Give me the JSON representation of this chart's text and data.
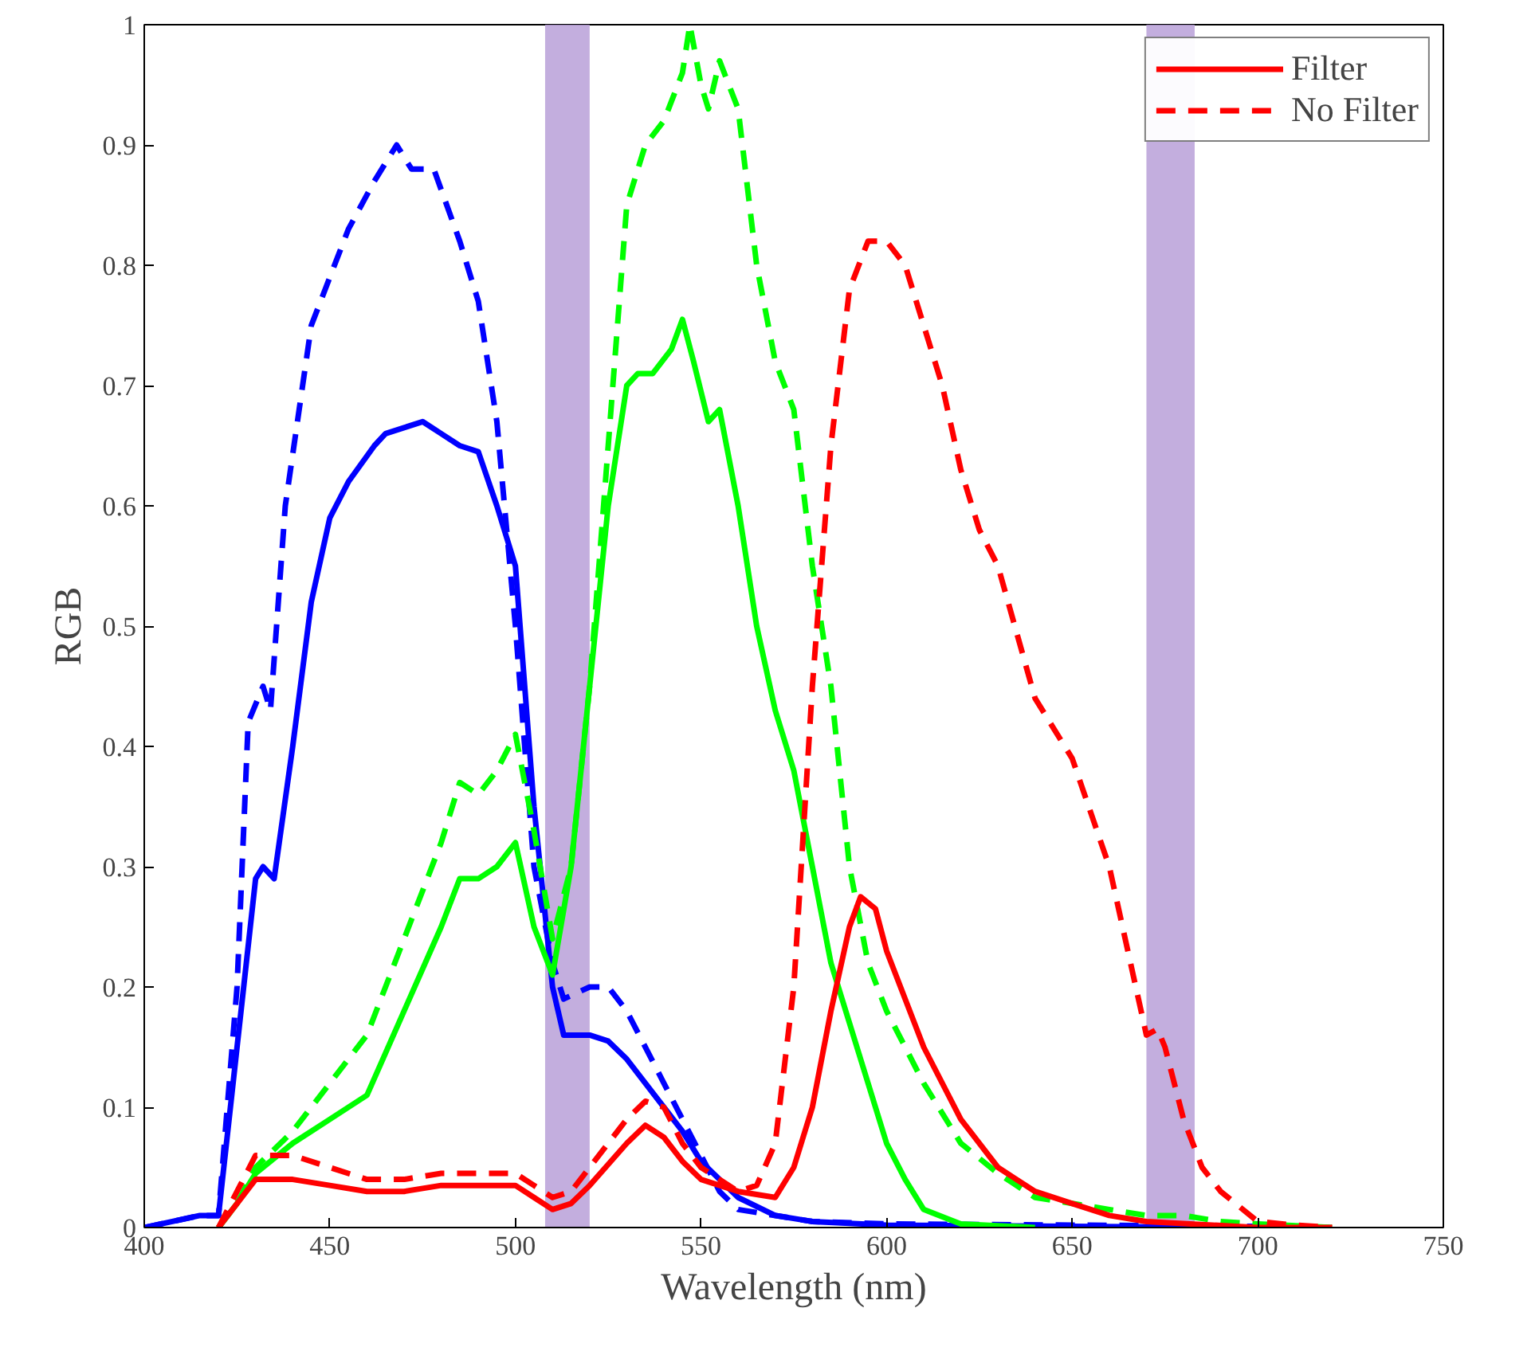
{
  "chart_data": {
    "type": "line",
    "xlabel": "Wavelength (nm)",
    "ylabel": "RGB",
    "xlim": [
      400,
      750
    ],
    "xticks": [
      400,
      450,
      500,
      550,
      600,
      650,
      700,
      750
    ],
    "ylim": [
      0,
      1
    ],
    "yticks": [
      0,
      0.1,
      0.2,
      0.3,
      0.4,
      0.5,
      0.6,
      0.7,
      0.8,
      0.9,
      1
    ],
    "grid": false,
    "legend": "top right",
    "marker": "none",
    "bands": [
      {
        "axis": "x",
        "from": 508,
        "to": 520,
        "color": "#b9a0d8"
      },
      {
        "axis": "x",
        "from": 670,
        "to": 683,
        "color": "#b9a0d8"
      }
    ],
    "series": [
      {
        "color": "#0000ff",
        "line_style": "dashed",
        "x": [
          400,
          415,
          420,
          425,
          428,
          432,
          434,
          438,
          445,
          455,
          462,
          468,
          472,
          478,
          485,
          490,
          495,
          500,
          505,
          510,
          513,
          520,
          525,
          530,
          540,
          550,
          555,
          560,
          580,
          600,
          650,
          700,
          720
        ],
        "values": [
          0,
          0.01,
          0.01,
          0.2,
          0.42,
          0.45,
          0.43,
          0.6,
          0.75,
          0.83,
          0.87,
          0.9,
          0.88,
          0.88,
          0.82,
          0.77,
          0.67,
          0.5,
          0.3,
          0.22,
          0.19,
          0.2,
          0.2,
          0.18,
          0.12,
          0.06,
          0.03,
          0.015,
          0.005,
          0.003,
          0.002,
          0.001,
          0
        ]
      },
      {
        "color": "#0000ff",
        "line_style": "solid",
        "x": [
          400,
          415,
          420,
          425,
          430,
          432,
          435,
          440,
          445,
          450,
          455,
          462,
          465,
          470,
          475,
          480,
          485,
          490,
          495,
          500,
          505,
          510,
          513,
          520,
          525,
          530,
          540,
          545,
          550,
          560,
          570,
          580,
          600,
          700
        ],
        "values": [
          0,
          0.01,
          0.01,
          0.15,
          0.29,
          0.3,
          0.29,
          0.4,
          0.52,
          0.59,
          0.62,
          0.65,
          0.66,
          0.665,
          0.67,
          0.66,
          0.65,
          0.645,
          0.6,
          0.55,
          0.35,
          0.2,
          0.16,
          0.16,
          0.155,
          0.14,
          0.1,
          0.08,
          0.055,
          0.025,
          0.01,
          0.005,
          0.002,
          0
        ]
      },
      {
        "color": "#00ff00",
        "line_style": "dashed",
        "x": [
          420,
          425,
          430,
          440,
          450,
          460,
          470,
          480,
          485,
          490,
          495,
          500,
          505,
          510,
          515,
          520,
          525,
          530,
          535,
          540,
          545,
          547,
          550,
          552,
          555,
          560,
          565,
          570,
          575,
          580,
          585,
          590,
          595,
          600,
          610,
          620,
          630,
          640,
          650,
          660,
          670,
          680,
          690,
          700,
          720
        ],
        "values": [
          0,
          0.02,
          0.05,
          0.08,
          0.12,
          0.16,
          0.24,
          0.32,
          0.37,
          0.36,
          0.38,
          0.41,
          0.33,
          0.24,
          0.3,
          0.45,
          0.65,
          0.85,
          0.9,
          0.92,
          0.96,
          1.0,
          0.95,
          0.93,
          0.97,
          0.93,
          0.8,
          0.72,
          0.68,
          0.55,
          0.45,
          0.3,
          0.22,
          0.18,
          0.12,
          0.07,
          0.045,
          0.025,
          0.02,
          0.015,
          0.01,
          0.01,
          0.005,
          0.003,
          0
        ]
      },
      {
        "color": "#00ff00",
        "line_style": "solid",
        "x": [
          420,
          425,
          430,
          440,
          450,
          460,
          470,
          480,
          485,
          490,
          495,
          500,
          505,
          510,
          515,
          520,
          525,
          530,
          533,
          537,
          542,
          545,
          548,
          552,
          555,
          560,
          565,
          570,
          575,
          580,
          585,
          590,
          595,
          600,
          605,
          610,
          620,
          640
        ],
        "values": [
          0,
          0.02,
          0.045,
          0.07,
          0.09,
          0.11,
          0.18,
          0.25,
          0.29,
          0.29,
          0.3,
          0.32,
          0.25,
          0.21,
          0.3,
          0.45,
          0.6,
          0.7,
          0.71,
          0.71,
          0.73,
          0.755,
          0.72,
          0.67,
          0.68,
          0.6,
          0.5,
          0.43,
          0.38,
          0.3,
          0.22,
          0.17,
          0.12,
          0.07,
          0.04,
          0.015,
          0.003,
          0
        ]
      },
      {
        "name": "Filter",
        "color": "#ff0000",
        "line_style": "solid",
        "x": [
          420,
          425,
          430,
          440,
          450,
          460,
          470,
          480,
          490,
          500,
          505,
          510,
          515,
          520,
          530,
          535,
          540,
          545,
          550,
          560,
          570,
          575,
          580,
          585,
          590,
          593,
          597,
          600,
          610,
          620,
          630,
          640,
          650,
          660,
          670,
          700,
          720
        ],
        "values": [
          0,
          0.02,
          0.04,
          0.04,
          0.035,
          0.03,
          0.03,
          0.035,
          0.035,
          0.035,
          0.025,
          0.015,
          0.02,
          0.035,
          0.07,
          0.085,
          0.075,
          0.055,
          0.04,
          0.03,
          0.025,
          0.05,
          0.1,
          0.18,
          0.25,
          0.275,
          0.265,
          0.23,
          0.15,
          0.09,
          0.05,
          0.03,
          0.02,
          0.01,
          0.005,
          0,
          0
        ]
      },
      {
        "name": "No Filter",
        "color": "#ff0000",
        "line_style": "dashed",
        "x": [
          420,
          425,
          430,
          440,
          450,
          460,
          470,
          480,
          490,
          500,
          505,
          510,
          515,
          520,
          530,
          535,
          540,
          545,
          550,
          560,
          565,
          570,
          575,
          580,
          585,
          590,
          595,
          600,
          605,
          610,
          615,
          620,
          625,
          630,
          640,
          650,
          660,
          665,
          670,
          673,
          675,
          680,
          685,
          690,
          700,
          710,
          720
        ],
        "values": [
          0,
          0.03,
          0.06,
          0.06,
          0.05,
          0.04,
          0.04,
          0.045,
          0.045,
          0.045,
          0.035,
          0.025,
          0.03,
          0.05,
          0.09,
          0.105,
          0.1,
          0.07,
          0.05,
          0.03,
          0.035,
          0.07,
          0.2,
          0.45,
          0.65,
          0.78,
          0.82,
          0.82,
          0.8,
          0.75,
          0.7,
          0.63,
          0.58,
          0.55,
          0.44,
          0.39,
          0.3,
          0.23,
          0.16,
          0.165,
          0.15,
          0.09,
          0.05,
          0.03,
          0.005,
          0.002,
          0
        ]
      }
    ]
  }
}
